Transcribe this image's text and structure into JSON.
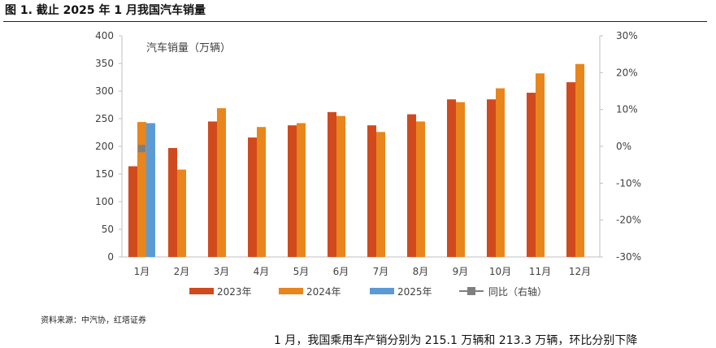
{
  "figure_title": "图 1. 截止 2025 年 1 月我国汽车销量",
  "source_note": "资料来源：中汽协，红塔证券",
  "bottom_text": "1 月，我国乘用车产销分别为 215.1 万辆和 213.3 万辆，环比分别下降",
  "colors": {
    "s2023": "#d04a1e",
    "s2024": "#e8851c",
    "s2025": "#5b9bd5",
    "yoy": "#7f7f7f",
    "axis": "#bfbfbf",
    "text": "#404040"
  },
  "chart_data": {
    "type": "bar",
    "title": "汽车销量（万辆）",
    "categories": [
      "1月",
      "2月",
      "3月",
      "4月",
      "5月",
      "6月",
      "7月",
      "8月",
      "9月",
      "10月",
      "11月",
      "12月"
    ],
    "series": [
      {
        "name": "2023年",
        "values": [
          164,
          197,
          245,
          216,
          238,
          262,
          238,
          258,
          285,
          285,
          297,
          316
        ]
      },
      {
        "name": "2024年",
        "values": [
          244,
          158,
          269,
          235,
          242,
          255,
          226,
          245,
          280,
          305,
          332,
          349
        ]
      },
      {
        "name": "2025年",
        "values": [
          242,
          null,
          null,
          null,
          null,
          null,
          null,
          null,
          null,
          null,
          null,
          null
        ]
      },
      {
        "name": "同比（右轴）",
        "axis": "right",
        "type": "line",
        "values": [
          -0.6,
          null,
          null,
          null,
          null,
          null,
          null,
          null,
          null,
          null,
          null,
          null
        ]
      }
    ],
    "ylim": [
      0,
      400
    ],
    "yticks": [
      0,
      50,
      100,
      150,
      200,
      250,
      300,
      350,
      400
    ],
    "y2lim": [
      -30,
      30
    ],
    "y2ticks": [
      "-30%",
      "-20%",
      "-10%",
      "0%",
      "10%",
      "20%",
      "30%"
    ],
    "legend_position": "bottom",
    "grid": false
  }
}
